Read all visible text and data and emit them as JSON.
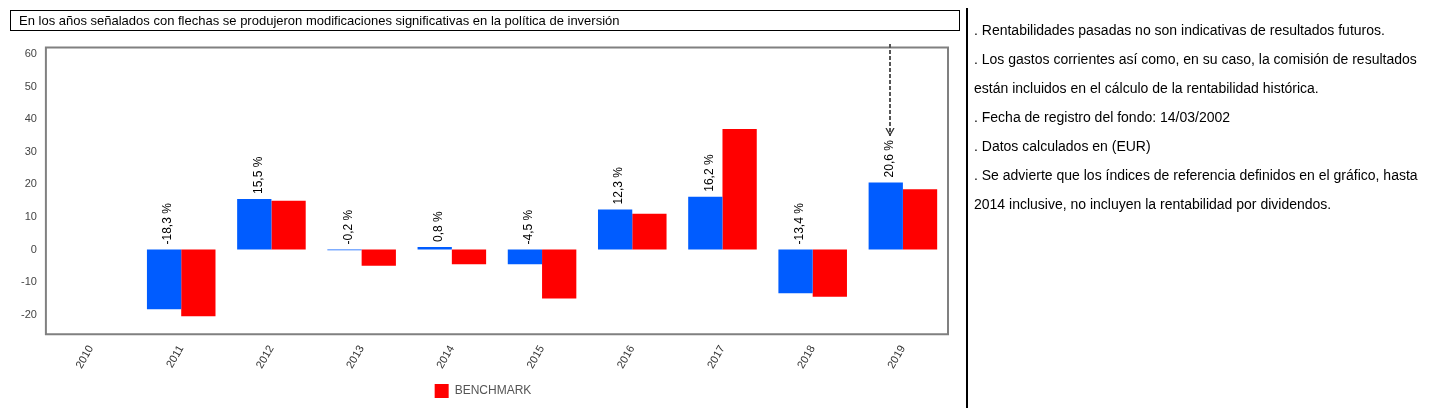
{
  "chart_data": {
    "type": "bar",
    "title": "En los años señalados con flechas se produjeron modificaciones significativas en la política de inversión",
    "categories": [
      "2010",
      "2011",
      "2012",
      "2013",
      "2014",
      "2015",
      "2016",
      "2017",
      "2018",
      "2019"
    ],
    "series": [
      {
        "color": "#005cff",
        "values": [
          null,
          -18.3,
          15.5,
          -0.2,
          0.8,
          -4.5,
          12.3,
          16.2,
          -13.4,
          20.6
        ],
        "value_labels": [
          null,
          "-18,3 %",
          "15,5 %",
          "-0,2 %",
          "0,8 %",
          "-4,5 %",
          "12,3 %",
          "16,2 %",
          "-13,4 %",
          "20,6 %"
        ]
      },
      {
        "name": "BENCHMARK",
        "color": "#ff0000",
        "values": [
          null,
          -20.5,
          15,
          -5,
          -4.5,
          -15,
          11,
          37,
          -14.5,
          18.5
        ]
      }
    ],
    "ylim": [
      -26,
      62
    ],
    "yticks": [
      -20,
      -10,
      0,
      10,
      20,
      30,
      40,
      50,
      60
    ],
    "grid": false,
    "legend": "bottom",
    "annotations": [
      ". Rentabilidades pasadas no son indicativas de resultados futuros.",
      ". Los gastos corrientes así como, en su caso, la comisión de resultados están incluidos en el cálculo de la rentabilidad histórica.",
      ". Fecha de registro del fondo: 14/03/2002",
      ". Datos calculados en (EUR)",
      ". Se advierte que los índices de referencia definidos en el gráfico, hasta 2014 inclusive, no incluyen la rentabilidad por dividendos."
    ]
  }
}
